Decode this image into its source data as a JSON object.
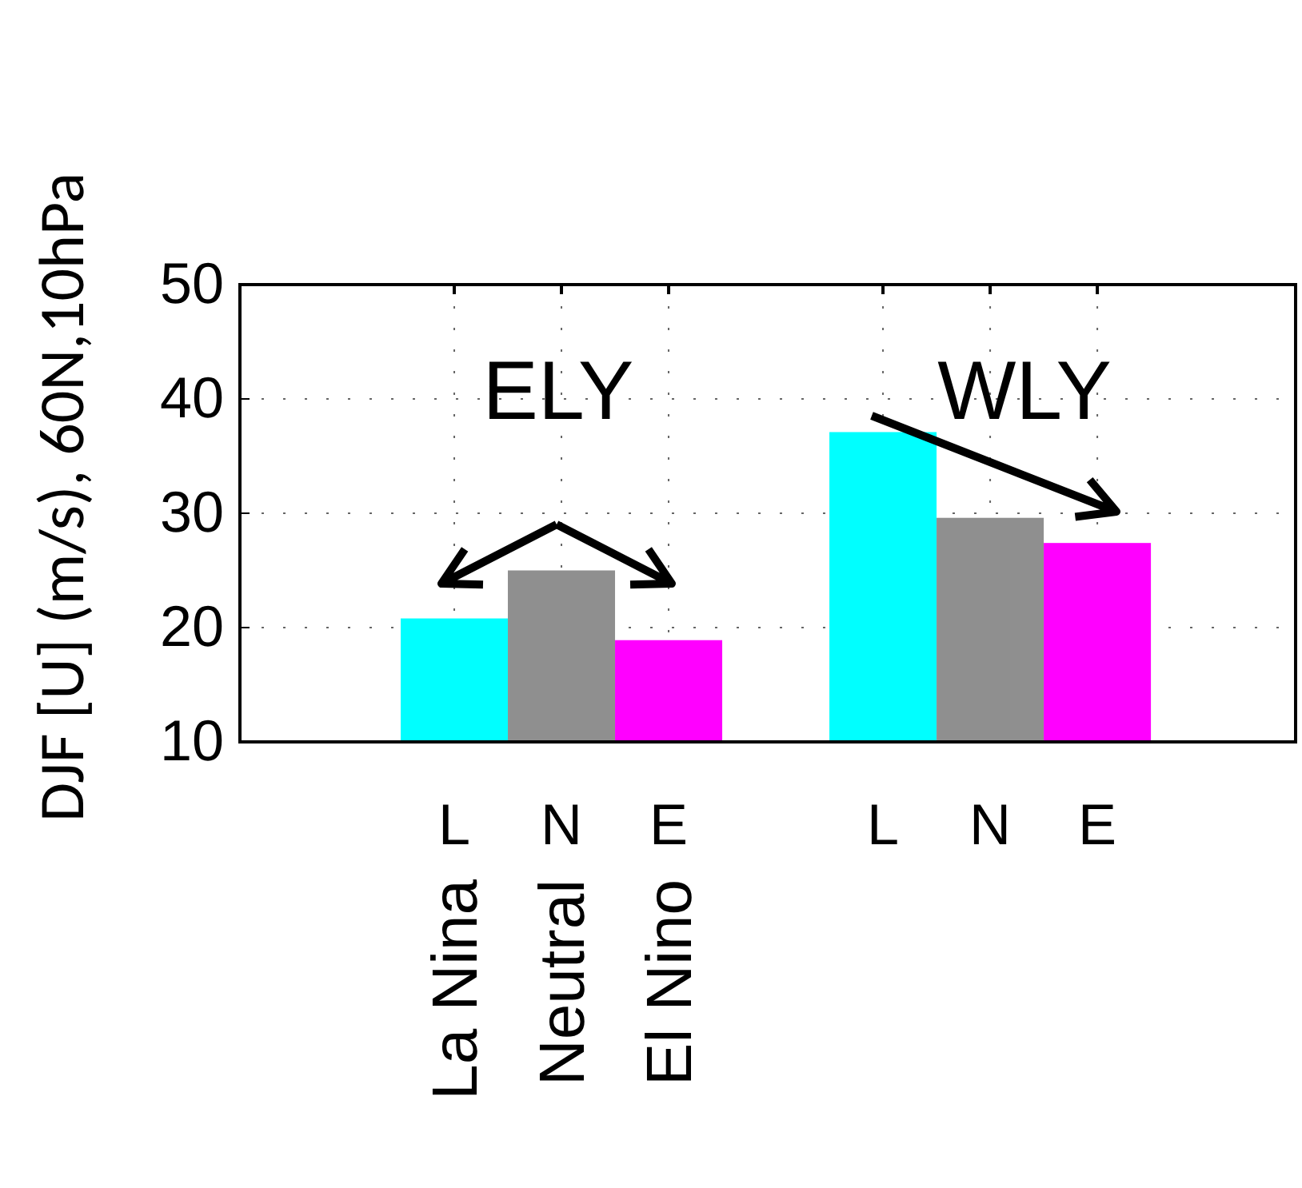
{
  "chart_data": {
    "type": "bar",
    "ylabel": "DJF [U] (m/s), 60N,10hPa",
    "categories": [
      "L",
      "N",
      "E",
      null,
      "L",
      "N",
      "E"
    ],
    "values": [
      20.8,
      25.0,
      18.9,
      null,
      37.1,
      29.6,
      27.4
    ],
    "colors": [
      "#00ffff",
      "#8f8f8f",
      "#ff00ff",
      null,
      "#00ffff",
      "#8f8f8f",
      "#ff00ff"
    ],
    "ylim": [
      10,
      50
    ],
    "yticks": [
      10,
      20,
      30,
      40,
      50
    ],
    "grid": true,
    "annotations": [
      "ELY",
      "WLY",
      "La Nina",
      "Neutral",
      "El Nino"
    ]
  }
}
